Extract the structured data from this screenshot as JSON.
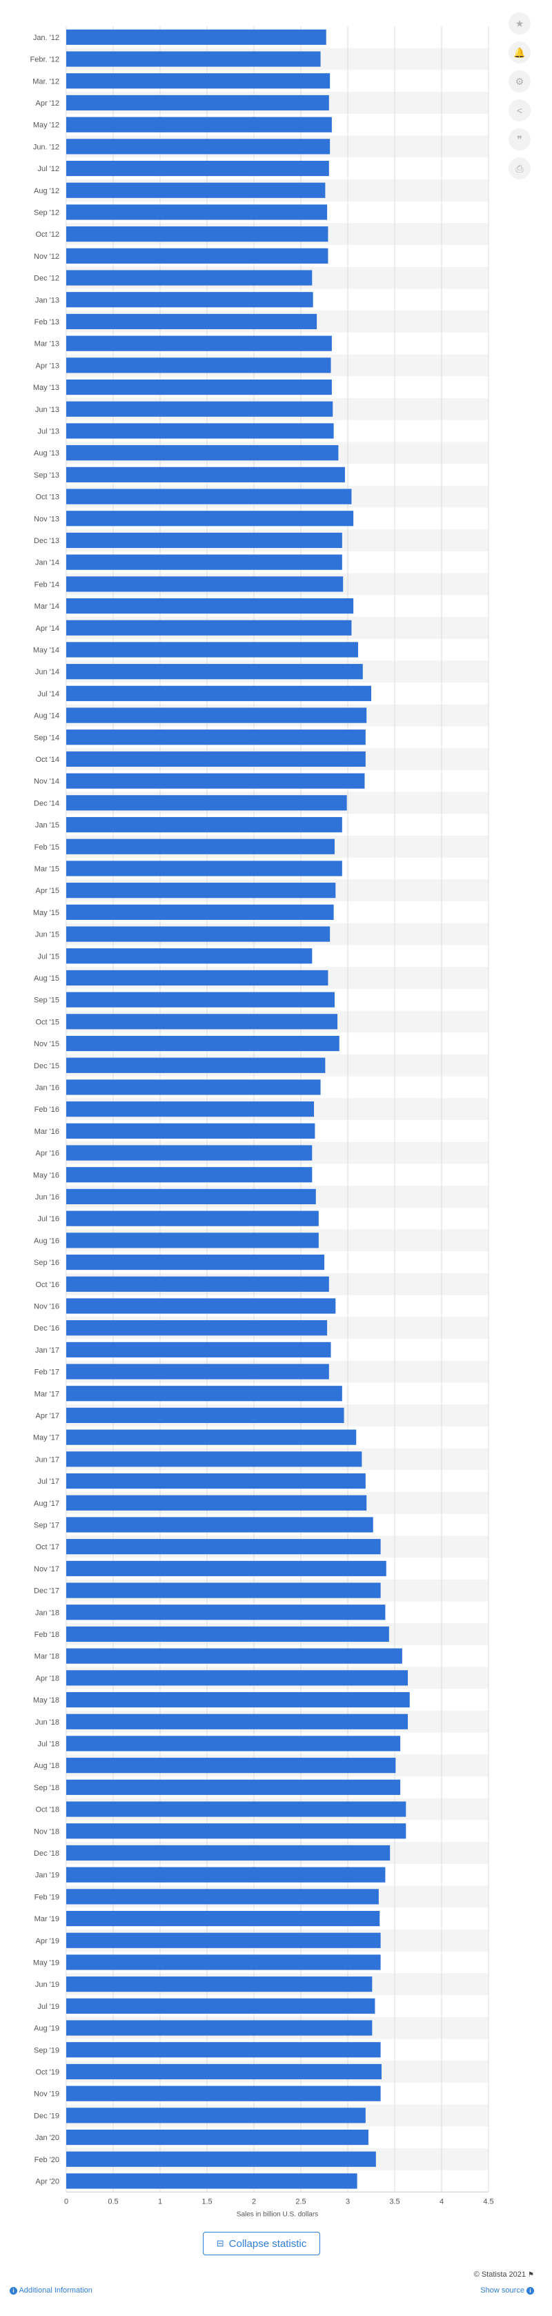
{
  "toolbar": {
    "buttons": [
      {
        "name": "favorite-star-icon",
        "glyph": "★"
      },
      {
        "name": "notification-bell-icon",
        "glyph": "🔔"
      },
      {
        "name": "settings-gear-icon",
        "glyph": "⚙"
      },
      {
        "name": "share-icon",
        "glyph": "<"
      },
      {
        "name": "cite-quote-icon",
        "glyph": "❞"
      },
      {
        "name": "print-icon",
        "glyph": "⎙"
      }
    ]
  },
  "chart_data": {
    "type": "bar",
    "orientation": "horizontal",
    "xlabel": "Sales in billion U.S. dollars",
    "xlim": [
      0,
      4.5
    ],
    "xticks": [
      0,
      0.5,
      1,
      1.5,
      2,
      2.5,
      3,
      3.5,
      4,
      4.5
    ],
    "xtick_labels": [
      "0",
      "0.5",
      "1",
      "1.5",
      "2",
      "2.5",
      "3",
      "3.5",
      "4",
      "4.5"
    ],
    "grid": true,
    "bar_color": "#2f73d9",
    "categories": [
      "Jan. '12",
      "Febr. '12",
      "Mar. '12",
      "Apr '12",
      "May '12",
      "Jun. '12",
      "Jul '12",
      "Aug '12",
      "Sep '12",
      "Oct '12",
      "Nov '12",
      "Dec '12",
      "Jan '13",
      "Feb '13",
      "Mar '13",
      "Apr '13",
      "May '13",
      "Jun '13",
      "Jul '13",
      "Aug '13",
      "Sep '13",
      "Oct '13",
      "Nov '13",
      "Dec '13",
      "Jan '14",
      "Feb '14",
      "Mar '14",
      "Apr '14",
      "May '14",
      "Jun '14",
      "Jul '14",
      "Aug '14",
      "Sep '14",
      "Oct '14",
      "Nov '14",
      "Dec '14",
      "Jan '15",
      "Feb '15",
      "Mar '15",
      "Apr '15",
      "May '15",
      "Jun '15",
      "Jul '15",
      "Aug '15",
      "Sep '15",
      "Oct '15",
      "Nov '15",
      "Dec '15",
      "Jan '16",
      "Feb '16",
      "Mar '16",
      "Apr '16",
      "May '16",
      "Jun '16",
      "Jul '16",
      "Aug '16",
      "Sep '16",
      "Oct '16",
      "Nov '16",
      "Dec '16",
      "Jan '17",
      "Feb '17",
      "Mar '17",
      "Apr '17",
      "May '17",
      "Jun '17",
      "Jul '17",
      "Aug '17",
      "Sep '17",
      "Oct '17",
      "Nov '17",
      "Dec '17",
      "Jan '18",
      "Feb '18",
      "Mar '18",
      "Apr '18",
      "May '18",
      "Jun '18",
      "Jul '18",
      "Aug '18",
      "Sep '18",
      "Oct '18",
      "Nov '18",
      "Dec '18",
      "Jan '19",
      "Feb '19",
      "Mar '19",
      "Apr '19",
      "May '19",
      "Jun '19",
      "Jul '19",
      "Aug '19",
      "Sep '19",
      "Oct '19",
      "Nov '19",
      "Dec '19",
      "Jan '20",
      "Feb '20",
      "Apr '20"
    ],
    "values": [
      2.77,
      2.71,
      2.81,
      2.8,
      2.83,
      2.81,
      2.8,
      2.76,
      2.78,
      2.79,
      2.79,
      2.62,
      2.63,
      2.67,
      2.83,
      2.82,
      2.83,
      2.84,
      2.85,
      2.9,
      2.97,
      3.04,
      3.06,
      2.94,
      2.94,
      2.95,
      3.06,
      3.04,
      3.11,
      3.16,
      3.25,
      3.2,
      3.19,
      3.19,
      3.18,
      2.99,
      2.94,
      2.86,
      2.94,
      2.87,
      2.85,
      2.81,
      2.62,
      2.79,
      2.86,
      2.89,
      2.91,
      2.76,
      2.71,
      2.64,
      2.65,
      2.62,
      2.62,
      2.66,
      2.69,
      2.69,
      2.75,
      2.8,
      2.87,
      2.78,
      2.82,
      2.8,
      2.94,
      2.96,
      3.09,
      3.15,
      3.19,
      3.2,
      3.27,
      3.35,
      3.41,
      3.35,
      3.4,
      3.44,
      3.58,
      3.64,
      3.66,
      3.64,
      3.56,
      3.51,
      3.56,
      3.62,
      3.62,
      3.45,
      3.4,
      3.33,
      3.34,
      3.35,
      3.35,
      3.26,
      3.29,
      3.26,
      3.35,
      3.36,
      3.35,
      3.19,
      3.22,
      3.3,
      3.1
    ]
  },
  "footer": {
    "collapse_label": "Collapse statistic",
    "credit": "© Statista 2021",
    "additional_info": "Additional Information",
    "show_source": "Show source"
  }
}
